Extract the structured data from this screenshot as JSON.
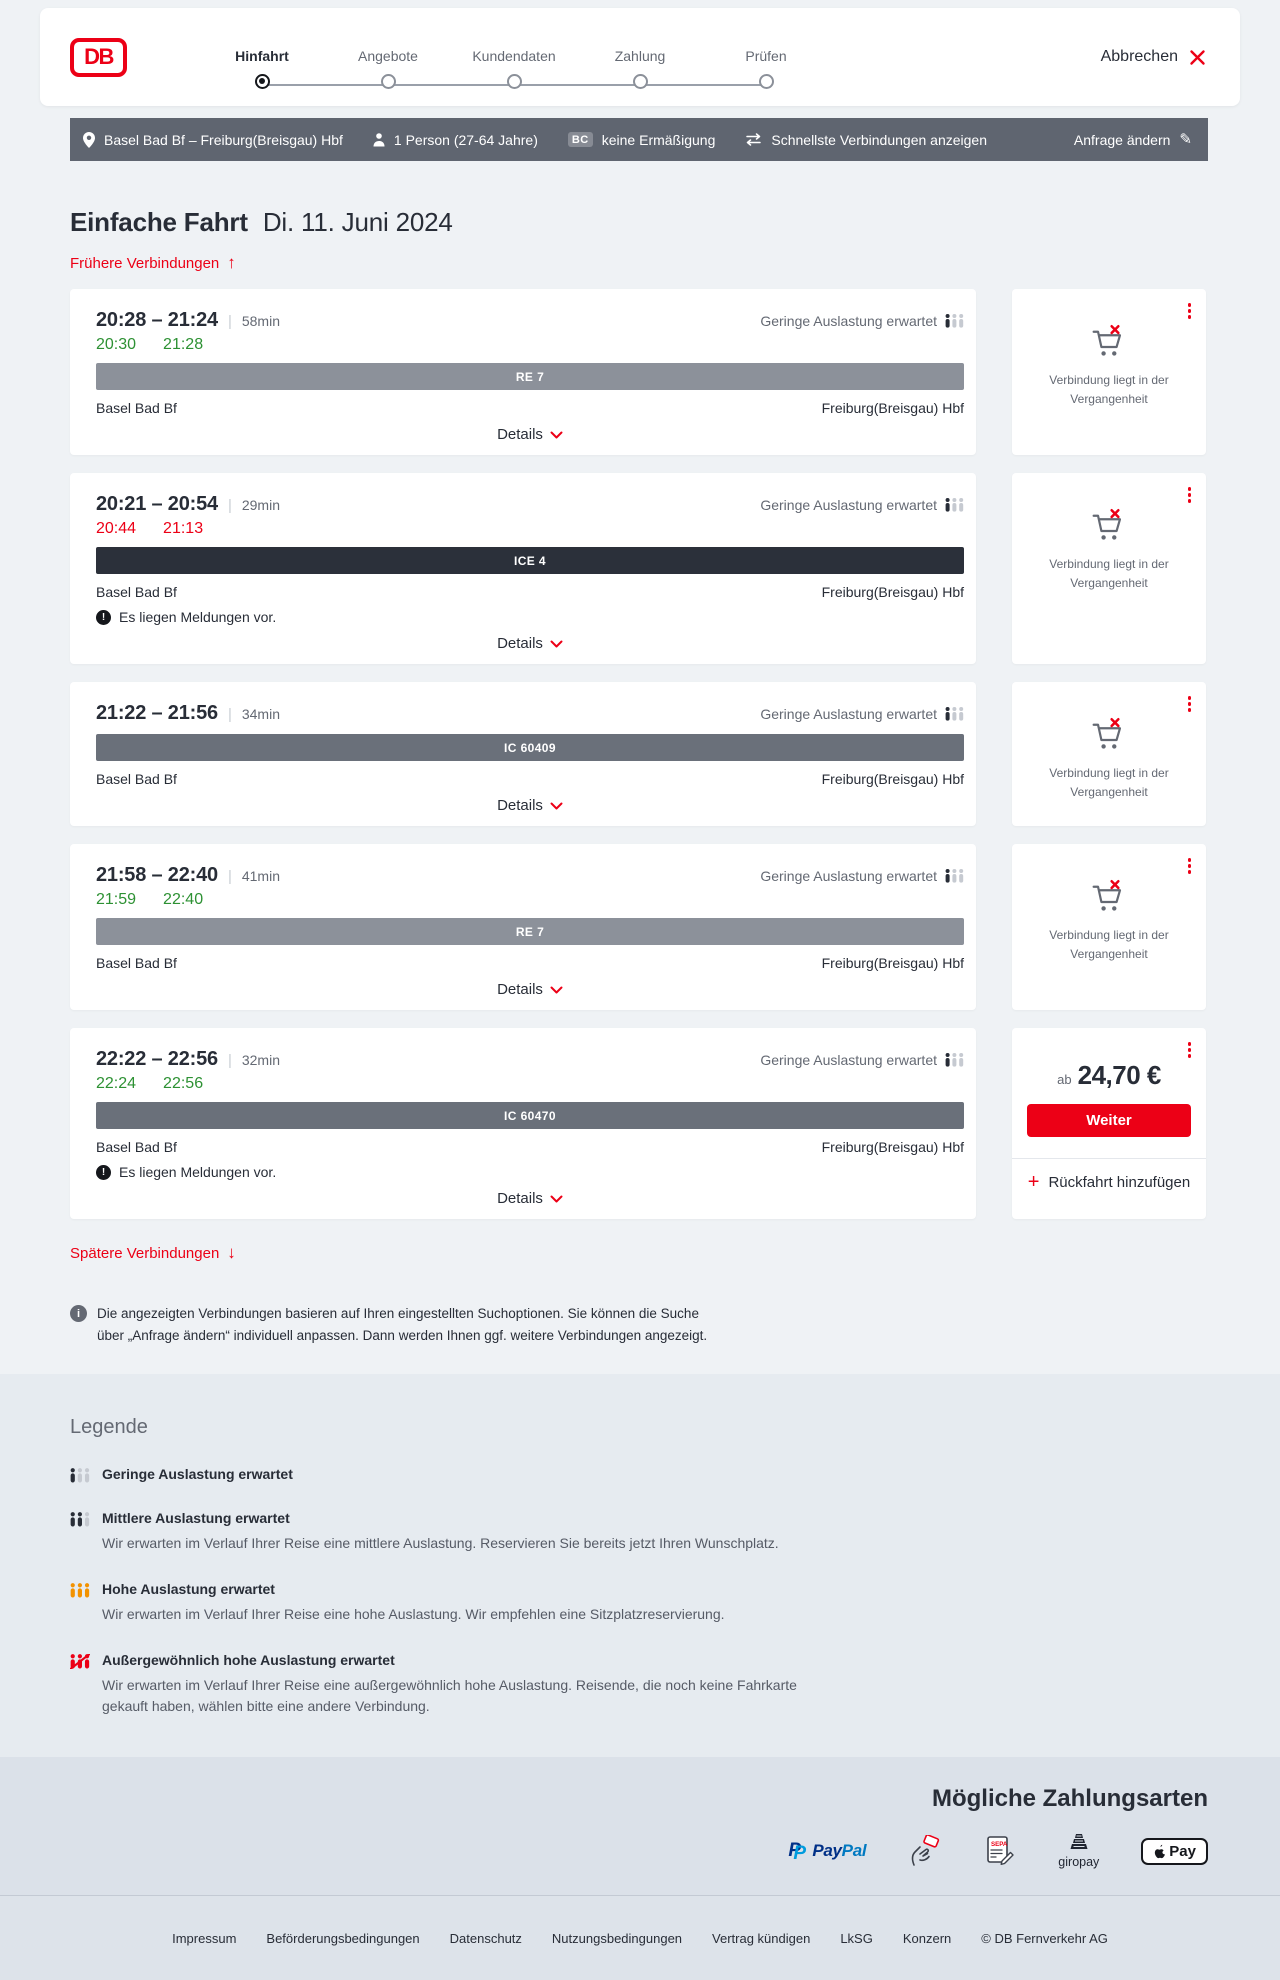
{
  "colors": {
    "brand_red": "#ec0016",
    "dark_text": "#282d37",
    "gray_text": "#646973",
    "ontime_green": "#2d9133",
    "delayed_red": "#ec0016",
    "bar_re_gray": "#8c919a",
    "bar_ic_gray": "#6a707a",
    "bar_ice_dark": "#2b303a",
    "filterbar_gray": "#5f6570",
    "occupancy_high_orange": "#f39200"
  },
  "header": {
    "logo_text": "DB",
    "steps": [
      {
        "label": "Hinfahrt",
        "state": "active"
      },
      {
        "label": "Angebote",
        "state": "upcoming"
      },
      {
        "label": "Kundendaten",
        "state": "upcoming"
      },
      {
        "label": "Zahlung",
        "state": "upcoming"
      },
      {
        "label": "Prüfen",
        "state": "upcoming"
      }
    ],
    "cancel_label": "Abbrechen"
  },
  "filter_bar": {
    "route": "Basel Bad Bf – Freiburg(Breisgau) Hbf",
    "passengers": "1 Person (27-64 Jahre)",
    "bahncard_badge": "BC",
    "discount": "keine Ermäßigung",
    "fastest_connections": "Schnellste Verbindungen anzeigen",
    "change_request": "Anfrage ändern",
    "change_request_icon": "✎"
  },
  "results": {
    "title": "Einfache Fahrt",
    "date": "Di. 11. Juni 2024",
    "earlier_label": "Frühere Verbindungen",
    "earlier_arrow": "↑",
    "later_label": "Spätere Verbindungen",
    "later_arrow": "↓",
    "duration_separator": "|",
    "info_text": "Die angezeigten Verbindungen basieren auf Ihren eingestellten Suchoptionen. Sie können die Suche über „Anfrage ändern“ individuell anpassen. Dann werden Ihnen ggf. weitere Verbindungen angezeigt."
  },
  "connections": [
    {
      "time_range": "20:28 – 21:24",
      "duration": "58min",
      "actual": {
        "dep": "20:30",
        "arr": "21:28",
        "status": "ontime"
      },
      "train": "RE 7",
      "train_style": "re",
      "from": "Basel Bad Bf",
      "to": "Freiburg(Breisgau) Hbf",
      "occupancy": "Geringe Auslastung erwartet",
      "details_label": "Details",
      "side": {
        "type": "past",
        "text": "Verbindung liegt in der Vergangenheit"
      }
    },
    {
      "time_range": "20:21 – 20:54",
      "duration": "29min",
      "actual": {
        "dep": "20:44",
        "arr": "21:13",
        "status": "delayed"
      },
      "train": "ICE 4",
      "train_style": "ice",
      "from": "Basel Bad Bf",
      "to": "Freiburg(Breisgau) Hbf",
      "occupancy": "Geringe Auslastung erwartet",
      "message": "Es liegen Meldungen vor.",
      "details_label": "Details",
      "side": {
        "type": "past",
        "text": "Verbindung liegt in der Vergangenheit"
      }
    },
    {
      "time_range": "21:22 – 21:56",
      "duration": "34min",
      "actual": null,
      "train": "IC 60409",
      "train_style": "ic",
      "from": "Basel Bad Bf",
      "to": "Freiburg(Breisgau) Hbf",
      "occupancy": "Geringe Auslastung erwartet",
      "details_label": "Details",
      "side": {
        "type": "past",
        "text": "Verbindung liegt in der Vergangenheit"
      }
    },
    {
      "time_range": "21:58 – 22:40",
      "duration": "41min",
      "actual": {
        "dep": "21:59",
        "arr": "22:40",
        "status": "ontime"
      },
      "train": "RE 7",
      "train_style": "re",
      "from": "Basel Bad Bf",
      "to": "Freiburg(Breisgau) Hbf",
      "occupancy": "Geringe Auslastung erwartet",
      "details_label": "Details",
      "side": {
        "type": "past",
        "text": "Verbindung liegt in der Vergangenheit"
      }
    },
    {
      "time_range": "22:22 – 22:56",
      "duration": "32min",
      "actual": {
        "dep": "22:24",
        "arr": "22:56",
        "status": "ontime"
      },
      "train": "IC 60470",
      "train_style": "ic",
      "from": "Basel Bad Bf",
      "to": "Freiburg(Breisgau) Hbf",
      "occupancy": "Geringe Auslastung erwartet",
      "message": "Es liegen Meldungen vor.",
      "details_label": "Details",
      "side": {
        "type": "price",
        "price_prefix": "ab",
        "price": "24,70 €",
        "cta_label": "Weiter",
        "add_return_label": "Rückfahrt hinzufügen"
      }
    }
  ],
  "legend": {
    "title": "Legende",
    "rows": [
      {
        "level": "low",
        "title": "Geringe Auslastung erwartet",
        "desc": null
      },
      {
        "level": "medium",
        "title": "Mittlere Auslastung erwartet",
        "desc": "Wir erwarten im Verlauf Ihrer Reise eine mittlere Auslastung. Reservieren Sie bereits jetzt Ihren Wunschplatz."
      },
      {
        "level": "high",
        "title": "Hohe Auslastung erwartet",
        "desc": "Wir erwarten im Verlauf Ihrer Reise eine hohe Auslastung. Wir empfehlen eine Sitzplatzreservierung."
      },
      {
        "level": "exceptional",
        "title": "Außergewöhnlich hohe Auslastung erwartet",
        "desc": "Wir erwarten im Verlauf Ihrer Reise eine außergewöhnlich hohe Auslastung. Reisende, die noch keine Fahrkarte gekauft haben, wählen bitte eine andere Verbindung."
      }
    ]
  },
  "payment": {
    "title": "Mögliche Zahlungsarten",
    "methods": [
      {
        "name": "PayPal",
        "text_start": "Pay",
        "text_end": "Pal"
      },
      {
        "name": "Kreditkarte"
      },
      {
        "name": "SEPA-Lastschrift",
        "text": "SEPA"
      },
      {
        "name": "giropay",
        "text": "giropay"
      },
      {
        "name": "Apple Pay",
        "text": "Pay"
      }
    ]
  },
  "footer": {
    "links": [
      "Impressum",
      "Beförderungsbedingungen",
      "Datenschutz",
      "Nutzungsbedingungen",
      "Vertrag kündigen",
      "LkSG",
      "Konzern"
    ],
    "copyright": "© DB Fernverkehr AG"
  },
  "misc": {
    "alert_glyph": "!",
    "info_glyph": "i"
  }
}
